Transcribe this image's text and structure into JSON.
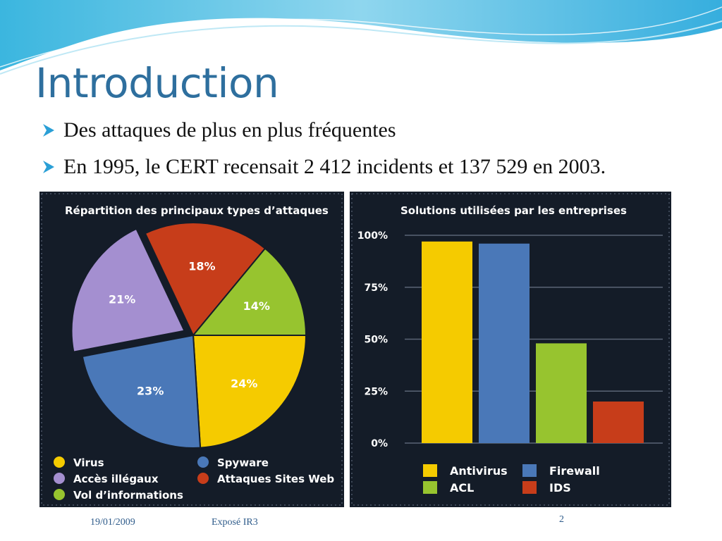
{
  "slide": {
    "title": "Introduction",
    "bullets": [
      "Des attaques de plus en plus fréquentes",
      "En 1995, le CERT recensait 2 412 incidents et 137 529 en 2003."
    ],
    "footer": {
      "date": "19/01/2009",
      "title": "Exposé IR3",
      "page": "2"
    },
    "colors": {
      "title": "#2e6f9e",
      "bullet_arrow": "#2a9fd6",
      "panel_bg": "#141c28"
    }
  },
  "chart_data": [
    {
      "type": "pie",
      "title": "Répartition des principaux types d’attaques",
      "slices": [
        {
          "label": "Virus",
          "value": 24,
          "display": "24%",
          "color": "#f5cb00"
        },
        {
          "label": "Spyware",
          "value": 23,
          "display": "23%",
          "color": "#4a78b8"
        },
        {
          "label": "Accès illégaux",
          "value": 21,
          "display": "21%",
          "color": "#a48fd0"
        },
        {
          "label": "Attaques Sites Web",
          "value": 18,
          "display": "18%",
          "color": "#c73d1a"
        },
        {
          "label": "Vol d’informations",
          "value": 14,
          "display": "14%",
          "color": "#97c42f"
        }
      ],
      "legend": [
        {
          "label": "Virus",
          "color": "#f5cb00"
        },
        {
          "label": "Spyware",
          "color": "#4a78b8"
        },
        {
          "label": "Accès illégaux",
          "color": "#a48fd0"
        },
        {
          "label": "Attaques Sites Web",
          "color": "#c73d1a"
        },
        {
          "label": "Vol d’informations",
          "color": "#97c42f"
        }
      ],
      "legend_position": "bottom"
    },
    {
      "type": "bar",
      "title": "Solutions utilisées par les entreprises",
      "categories": [
        "Antivirus",
        "Firewall",
        "ACL",
        "IDS"
      ],
      "values": [
        97,
        96,
        48,
        20
      ],
      "colors": [
        "#f5cb00",
        "#4a78b8",
        "#97c42f",
        "#c73d1a"
      ],
      "yticks": [
        "0%",
        "25%",
        "50%",
        "75%",
        "100%"
      ],
      "ylim": [
        0,
        100
      ],
      "grid": true,
      "legend_position": "bottom"
    }
  ]
}
